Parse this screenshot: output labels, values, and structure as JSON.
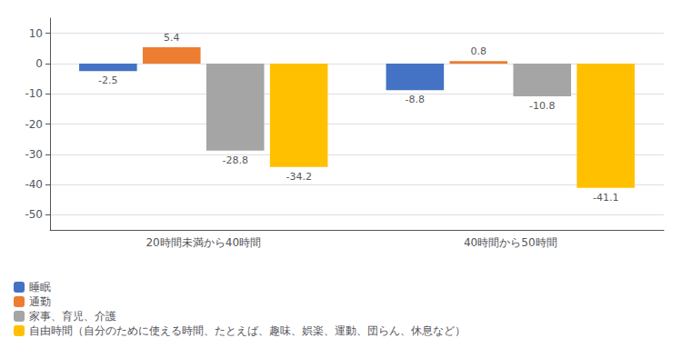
{
  "chart_data": {
    "type": "bar",
    "categories": [
      "20時間未満から40時間",
      "40時間から50時間"
    ],
    "series": [
      {
        "name": "睡眠",
        "color": "#4472C4",
        "values": [
          -2.5,
          -8.8
        ]
      },
      {
        "name": "通勤",
        "color": "#ED7D31",
        "values": [
          5.4,
          0.8
        ]
      },
      {
        "name": "家事、育児、介護",
        "color": "#A5A5A5",
        "values": [
          -28.8,
          -10.8
        ]
      },
      {
        "name": "自由時間（自分のために使える時間、たとえば、趣味、娯楽、運動、団らん、休息など）",
        "color": "#FFC000",
        "values": [
          -34.2,
          -41.1
        ]
      }
    ],
    "ylim": [
      -55,
      15
    ],
    "yticks": [
      -50,
      -40,
      -30,
      -20,
      -10,
      0,
      10
    ],
    "grid": true,
    "data_labels": true,
    "legend": "lower left"
  }
}
